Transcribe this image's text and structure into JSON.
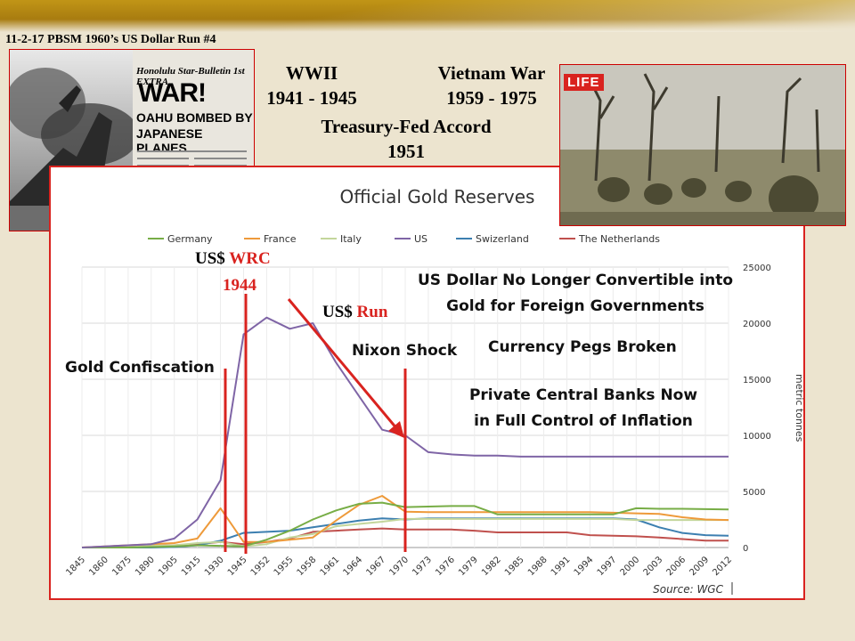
{
  "slide_title": "11-2-17 PBSM 1960’s US Dollar Run #4",
  "wwii": {
    "label": "WWII",
    "years": "1941 - 1945"
  },
  "vietnam": {
    "label": "Vietnam War",
    "years": "1959 - 1975"
  },
  "accord": {
    "label": "Treasury-Fed Accord",
    "year": "1951"
  },
  "left_photo": {
    "masthead": "Honolulu Star-Bulletin",
    "edition": "1st EXTRA",
    "headline1": "WAR!",
    "headline2": "OAHU BOMBED BY",
    "headline3": "JAPANESE PLANES"
  },
  "right_photo": {
    "logo": "LIFE"
  },
  "annotations": {
    "wrc_prefix": "US$",
    "wrc_red": "WRC",
    "wrc_year": "1944",
    "run_prefix": "US$",
    "run_red": "Run",
    "gold_confiscation": "Gold Confiscation",
    "nixon_shock": "Nixon Shock",
    "no_longer_1": "US Dollar No Longer Convertible into",
    "no_longer_2": "Gold for Foreign Governments",
    "pegs_broken": "Currency Pegs Broken",
    "private_cb_1": "Private Central Banks Now",
    "private_cb_2": "in Full Control of Inflation"
  },
  "colors": {
    "Germany": "#77ad46",
    "France": "#ee9a3a",
    "Italy": "#c3d69b",
    "US": "#7f65a6",
    "Swizerland": "#3c7fb0",
    "The Netherlands": "#c0504d",
    "accent_red": "#d9231f"
  },
  "chart_data": {
    "type": "line",
    "title": "Official Gold Reserves",
    "ylabel": "metric tonnes",
    "source": "Source: WGC",
    "ylim": [
      0,
      25000
    ],
    "y_ticks": [
      0,
      5000,
      10000,
      15000,
      20000,
      25000
    ],
    "y_tick_labels": [
      "0",
      "5000",
      "10000",
      "15000",
      "20000",
      "25000"
    ],
    "x_tick_labels": [
      "1845",
      "1860",
      "1875",
      "1890",
      "1905",
      "1915",
      "1930",
      "1945",
      "1952",
      "1955",
      "1958",
      "1961",
      "1964",
      "1967",
      "1970",
      "1973",
      "1976",
      "1979",
      "1982",
      "1985",
      "1988",
      "1991",
      "1994",
      "1997",
      "2000",
      "2003",
      "2006",
      "2009",
      "2012"
    ],
    "legend": [
      "Germany",
      "France",
      "Italy",
      "US",
      "Swizerland",
      "The Netherlands"
    ],
    "legend_position": "top",
    "grid": true,
    "series": [
      {
        "name": "US",
        "values": [
          0,
          100,
          200,
          300,
          800,
          2500,
          6000,
          19000,
          20500,
          19500,
          20000,
          16500,
          13500,
          10500,
          10000,
          8500,
          8300,
          8200,
          8200,
          8100,
          8100,
          8100,
          8100,
          8100,
          8100,
          8100,
          8100,
          8100,
          8100
        ]
      },
      {
        "name": "Germany",
        "values": [
          0,
          0,
          0,
          50,
          100,
          200,
          150,
          100,
          700,
          1500,
          2500,
          3300,
          3900,
          4000,
          3600,
          3650,
          3700,
          3700,
          2950,
          2950,
          2950,
          2950,
          2950,
          2950,
          3500,
          3450,
          3450,
          3420,
          3400
        ]
      },
      {
        "name": "France",
        "values": [
          0,
          100,
          200,
          300,
          400,
          800,
          3500,
          500,
          500,
          700,
          900,
          2400,
          3800,
          4600,
          3200,
          3150,
          3150,
          3150,
          3150,
          3150,
          3150,
          3150,
          3150,
          3100,
          3050,
          3000,
          2700,
          2500,
          2450
        ]
      },
      {
        "name": "Italy",
        "values": [
          0,
          50,
          100,
          150,
          200,
          400,
          500,
          100,
          300,
          900,
          1200,
          1900,
          2100,
          2300,
          2550,
          2550,
          2550,
          2550,
          2550,
          2550,
          2550,
          2550,
          2550,
          2550,
          2450,
          2450,
          2450,
          2450,
          2450
        ]
      },
      {
        "name": "Swizerland",
        "values": [
          0,
          0,
          0,
          0,
          50,
          200,
          600,
          1300,
          1400,
          1500,
          1800,
          2100,
          2400,
          2600,
          2500,
          2600,
          2600,
          2600,
          2600,
          2600,
          2600,
          2600,
          2600,
          2600,
          2500,
          1800,
          1300,
          1100,
          1050
        ]
      },
      {
        "name": "The Netherlands",
        "values": [
          0,
          50,
          100,
          150,
          200,
          300,
          500,
          300,
          500,
          800,
          1400,
          1500,
          1600,
          1700,
          1600,
          1600,
          1600,
          1500,
          1350,
          1350,
          1350,
          1350,
          1100,
          1050,
          1000,
          900,
          750,
          620,
          610
        ]
      }
    ]
  }
}
